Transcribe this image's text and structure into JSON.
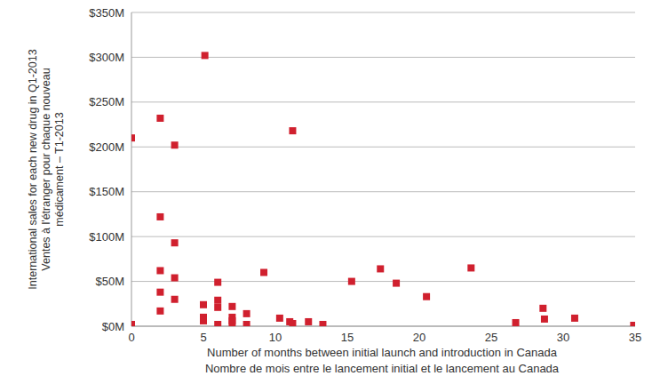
{
  "chart_data": {
    "type": "scatter",
    "x_label": [
      "Number of months between initial launch and introduction in Canada",
      "Nombre de mois entre le lancement initial et le lancement au Canada"
    ],
    "y_label": [
      "International sales for each new drug in Q1-2013",
      "Ventes à l'étranger pour chaque nouveau",
      "médicament – T1-2013"
    ],
    "x": [
      0,
      0,
      2,
      2,
      2,
      2,
      2,
      3,
      3,
      3,
      3,
      5.1,
      5,
      5,
      5,
      6,
      6,
      6,
      6,
      7,
      7,
      7,
      7,
      8,
      8,
      9.2,
      10.3,
      11.2,
      11,
      11.2,
      12.3,
      13.3,
      15.3,
      17.3,
      18.4,
      20.5,
      23.6,
      26.7,
      28.6,
      28.7,
      30.8,
      34.9
    ],
    "values": [
      210,
      2,
      232,
      122,
      62,
      38,
      17,
      202,
      93,
      54,
      30,
      302,
      24,
      10,
      6,
      49,
      29,
      21,
      2,
      22,
      10,
      6,
      2,
      14,
      2,
      60,
      9,
      218,
      5,
      3,
      5,
      2,
      50,
      64,
      48,
      33,
      65,
      4,
      20,
      8,
      9,
      1
    ],
    "color": "#d0202e",
    "marker": "square",
    "xlim": [
      0,
      35
    ],
    "xticks": [
      0,
      5,
      10,
      15,
      20,
      25,
      30,
      35
    ],
    "ylim": [
      0,
      350
    ],
    "yticks": [
      {
        "value": 0,
        "label": "$0M"
      },
      {
        "value": 50,
        "label": "$50M"
      },
      {
        "value": 100,
        "label": "$100M"
      },
      {
        "value": 150,
        "label": "$150M"
      },
      {
        "value": 200,
        "label": "$200M"
      },
      {
        "value": 250,
        "label": "$250M"
      },
      {
        "value": 300,
        "label": "$300M"
      },
      {
        "value": 350,
        "label": "$350M"
      }
    ],
    "grid": true
  }
}
